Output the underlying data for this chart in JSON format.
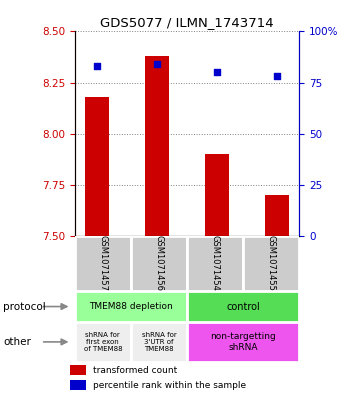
{
  "title": "GDS5077 / ILMN_1743714",
  "samples": [
    "GSM1071457",
    "GSM1071456",
    "GSM1071454",
    "GSM1071455"
  ],
  "bar_values": [
    8.18,
    8.38,
    7.9,
    7.7
  ],
  "bar_bottom": 7.5,
  "percentile_values": [
    83,
    84,
    80,
    78
  ],
  "ylim_left": [
    7.5,
    8.5
  ],
  "ylim_right": [
    0,
    100
  ],
  "yticks_left": [
    7.5,
    7.75,
    8.0,
    8.25,
    8.5
  ],
  "yticks_right": [
    0,
    25,
    50,
    75,
    100
  ],
  "ytick_labels_right": [
    "0",
    "25",
    "50",
    "75",
    "100%"
  ],
  "bar_color": "#cc0000",
  "dot_color": "#0000cc",
  "background_color": "#ffffff",
  "protocol_label1": "TMEM88 depletion",
  "protocol_label2": "control",
  "protocol_color1": "#99ff99",
  "protocol_color2": "#55dd55",
  "other_text1": "shRNA for\nfirst exon\nof TMEM88",
  "other_text2": "shRNA for\n3'UTR of\nTMEM88",
  "other_text3": "non-targetting\nshRNA",
  "other_color1": "#eeeeee",
  "other_color2": "#eeeeee",
  "other_color3": "#ee55ee",
  "sample_bg": "#cccccc",
  "legend_bar_label": "transformed count",
  "legend_dot_label": "percentile rank within the sample",
  "left_label1": "protocol",
  "left_label2": "other"
}
